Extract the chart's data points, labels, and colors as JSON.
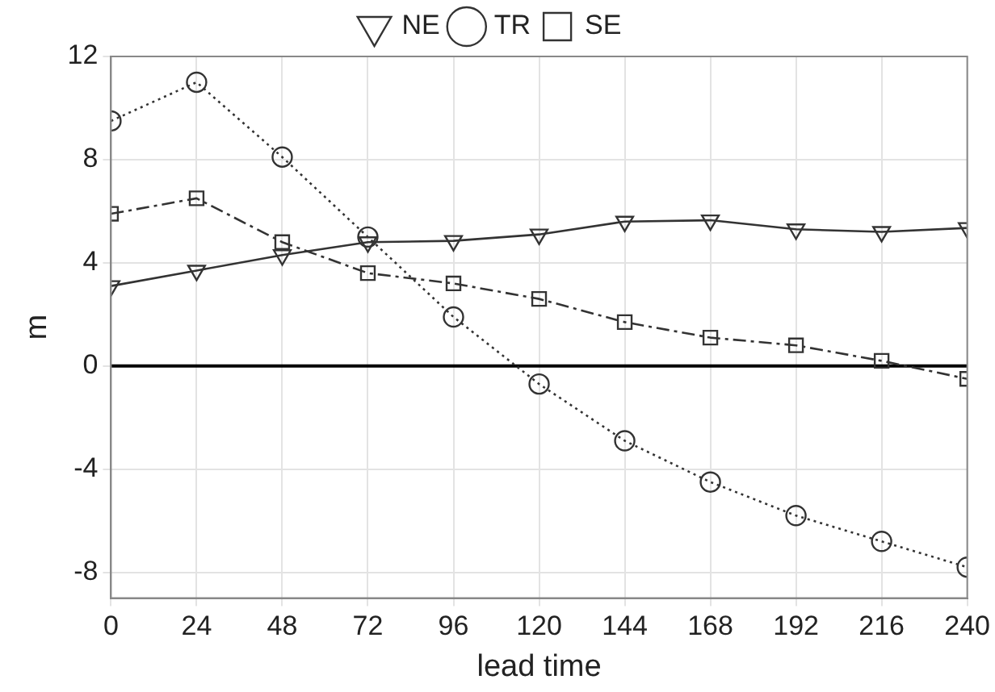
{
  "chart_data": {
    "type": "line",
    "xlabel": "lead time",
    "ylabel": "m",
    "x": [
      0,
      24,
      48,
      72,
      96,
      120,
      144,
      168,
      192,
      216,
      240
    ],
    "xlim": [
      0,
      240
    ],
    "xticks": [
      0,
      24,
      48,
      72,
      96,
      120,
      144,
      168,
      192,
      216,
      240
    ],
    "ylim": [
      -9,
      12
    ],
    "yticks": [
      -8,
      -4,
      0,
      4,
      8,
      12
    ],
    "grid": true,
    "legend": "top",
    "ref_lines": [
      {
        "axis": "y",
        "value": 0,
        "color": "#000000"
      }
    ],
    "series": [
      {
        "name": "NE",
        "color": "#333333",
        "marker": "triangle",
        "line_style": "solid",
        "values": [
          3.1,
          3.7,
          4.3,
          4.8,
          4.85,
          5.1,
          5.6,
          5.65,
          5.3,
          5.2,
          5.35
        ]
      },
      {
        "name": "TR",
        "color": "#333333",
        "marker": "circle",
        "line_style": "dotted",
        "values": [
          9.5,
          11,
          8.1,
          5.0,
          1.9,
          -0.7,
          -2.9,
          -4.5,
          -5.8,
          -6.8,
          -7.8
        ]
      },
      {
        "name": "SE",
        "color": "#333333",
        "marker": "square",
        "line_style": "dashdot",
        "values": [
          5.9,
          6.5,
          4.8,
          3.6,
          3.2,
          2.6,
          1.7,
          1.1,
          0.8,
          0.2,
          -0.5
        ]
      }
    ]
  }
}
